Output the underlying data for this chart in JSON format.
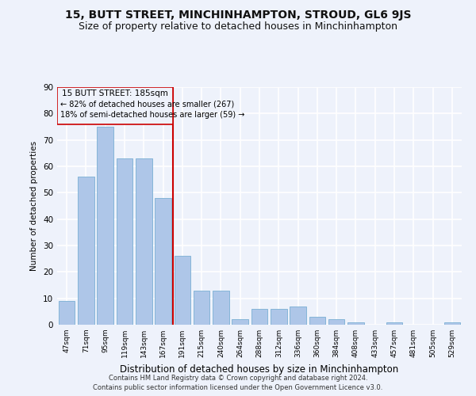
{
  "title": "15, BUTT STREET, MINCHINHAMPTON, STROUD, GL6 9JS",
  "subtitle": "Size of property relative to detached houses in Minchinhampton",
  "xlabel": "Distribution of detached houses by size in Minchinhampton",
  "ylabel": "Number of detached properties",
  "categories": [
    "47sqm",
    "71sqm",
    "95sqm",
    "119sqm",
    "143sqm",
    "167sqm",
    "191sqm",
    "215sqm",
    "240sqm",
    "264sqm",
    "288sqm",
    "312sqm",
    "336sqm",
    "360sqm",
    "384sqm",
    "408sqm",
    "433sqm",
    "457sqm",
    "481sqm",
    "505sqm",
    "529sqm"
  ],
  "values": [
    9,
    56,
    75,
    63,
    63,
    48,
    26,
    13,
    13,
    2,
    6,
    6,
    7,
    3,
    2,
    1,
    0,
    1,
    0,
    0,
    1
  ],
  "bar_color": "#aec6e8",
  "bar_edge_color": "#7aafd4",
  "vline_color": "#cc0000",
  "box_color": "#cc0000",
  "background_color": "#eef2fb",
  "grid_color": "#ffffff",
  "footer1": "Contains HM Land Registry data © Crown copyright and database right 2024.",
  "footer2": "Contains public sector information licensed under the Open Government Licence v3.0.",
  "property_label": "15 BUTT STREET: 185sqm",
  "annotation_line1": "← 82% of detached houses are smaller (267)",
  "annotation_line2": "18% of semi-detached houses are larger (59) →",
  "ylim": [
    0,
    90
  ],
  "title_fontsize": 10,
  "subtitle_fontsize": 9
}
